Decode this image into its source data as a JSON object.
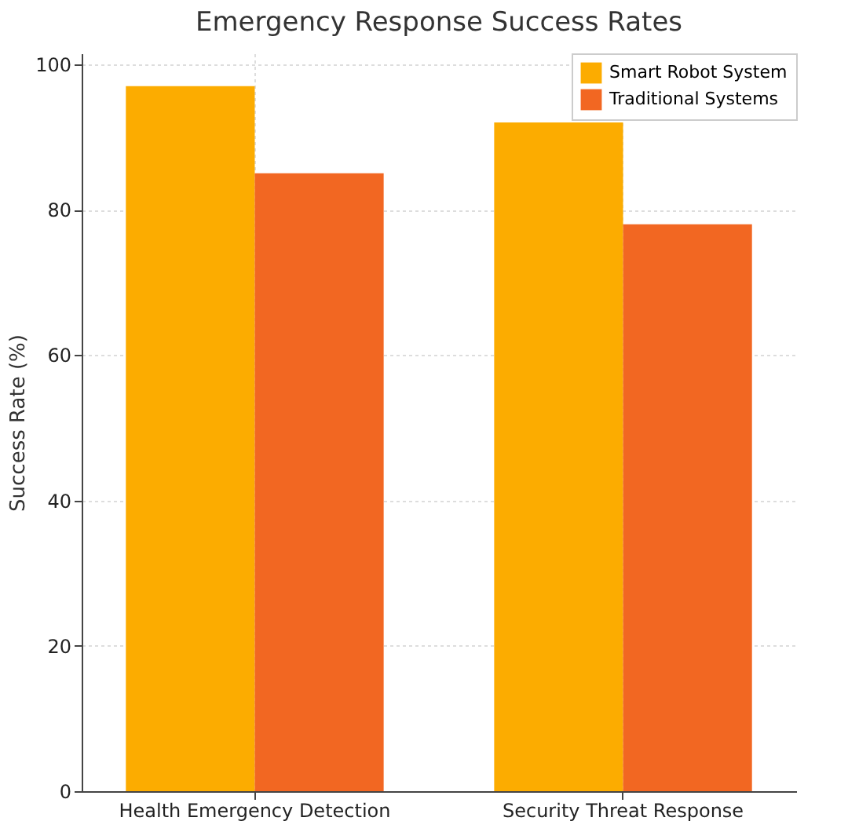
{
  "chart_data": {
    "type": "bar",
    "title": "Emergency Response Success Rates",
    "ylabel": "Success Rate (%)",
    "categories": [
      "Health Emergency Detection",
      "Security Threat Response"
    ],
    "series": [
      {
        "name": "Smart Robot System",
        "color": "#fcac00",
        "values": [
          97,
          92
        ]
      },
      {
        "name": "Traditional Systems",
        "color": "#f26722",
        "values": [
          85,
          78
        ]
      }
    ],
    "ylim": [
      0,
      101.5
    ],
    "yticks": [
      0,
      20,
      40,
      60,
      80,
      100
    ],
    "grid": true,
    "legend": "top right"
  }
}
